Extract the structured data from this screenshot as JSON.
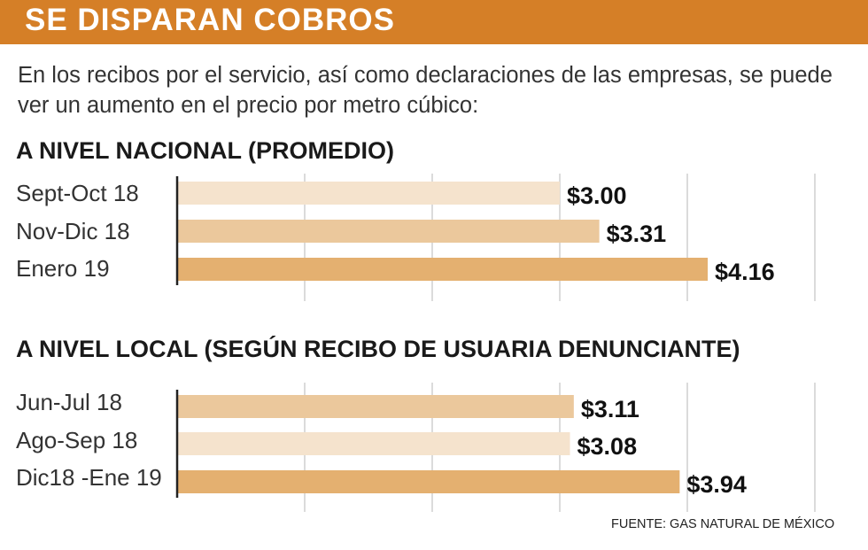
{
  "header": {
    "title": "SE DISPARAN COBROS"
  },
  "intro": "En los recibos por el servicio, así como declaraciones de las empresas, se puede ver un aumento en el precio por metro cúbico:",
  "colors": {
    "banner": "#d57f27",
    "bar_light": "#f5e3cd",
    "bar_mid": "#ebc89c",
    "bar_strong": "#e4b070",
    "gridline": "#cfcfcf"
  },
  "chart_data": [
    {
      "type": "bar",
      "orientation": "horizontal",
      "title": "A NIVEL NACIONAL (PROMEDIO)",
      "categories": [
        "Sept-Oct 18",
        "Nov-Dic 18",
        "Enero 19"
      ],
      "values": [
        3.0,
        3.31,
        4.16
      ],
      "value_labels": [
        "$3.00",
        "$3.31",
        "$4.16"
      ],
      "xlim": [
        0,
        5
      ],
      "grid": true
    },
    {
      "type": "bar",
      "orientation": "horizontal",
      "title": "A NIVEL LOCAL (SEGÚN RECIBO DE USUARIA DENUNCIANTE)",
      "categories": [
        "Jun-Jul 18",
        "Ago-Sep 18",
        "Dic18 -Ene 19"
      ],
      "values": [
        3.11,
        3.08,
        3.94
      ],
      "value_labels": [
        "$3.11",
        "$3.08",
        "$3.94"
      ],
      "xlim": [
        0,
        5
      ],
      "grid": true
    }
  ],
  "footer": {
    "source": "FUENTE: GAS NATURAL DE MÉXICO"
  }
}
